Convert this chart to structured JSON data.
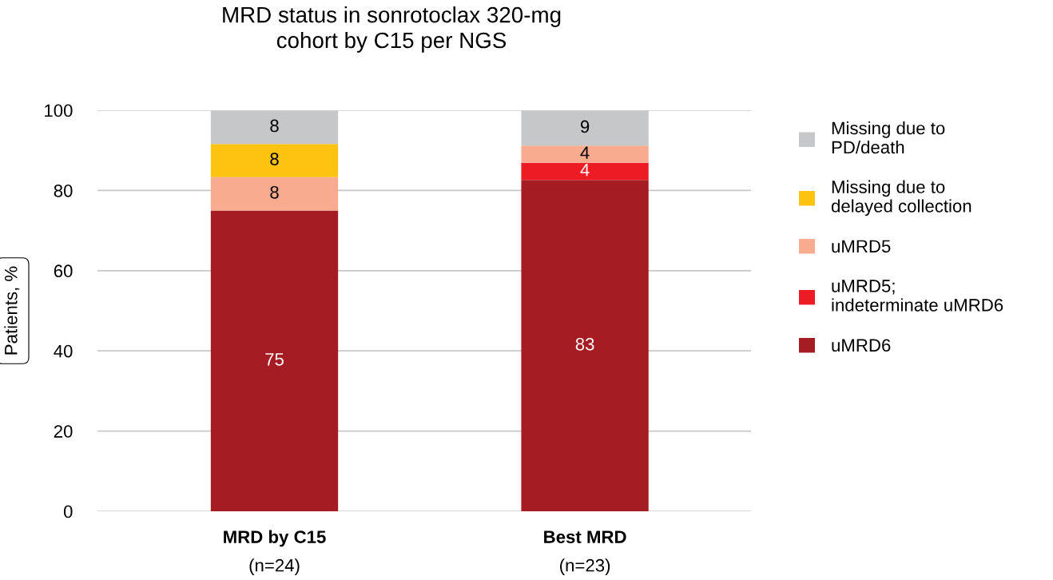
{
  "chart_data": {
    "type": "bar",
    "title": "MRD status in sonrotoclax 320-mg\ncohort by C15 per NGS",
    "ylabel": "Patients, %",
    "categories": [
      "MRD by C15\n(n=24)",
      "Best MRD\n(n=23)"
    ],
    "stacked": true,
    "series": [
      {
        "name": "uMRD6",
        "color": "#a51c22",
        "values": [
          75,
          82.6
        ],
        "value_labels": [
          "75",
          "83"
        ]
      },
      {
        "name": "uMRD5;\nindeterminate uMRD6",
        "color": "#ed1c24",
        "values": [
          null,
          4.3
        ],
        "value_labels": [
          null,
          "4"
        ]
      },
      {
        "name": "uMRD5",
        "color": "#f9ab8f",
        "values": [
          8.3,
          4.3
        ],
        "value_labels": [
          "8",
          "4"
        ]
      },
      {
        "name": "Missing due to\ndelayed collection",
        "color": "#fec210",
        "values": [
          8.3,
          null
        ],
        "value_labels": [
          "8",
          null
        ]
      },
      {
        "name": "Missing due to\nPD/death",
        "color": "#c6c7c9",
        "values": [
          8.3,
          8.7
        ],
        "value_labels": [
          "8",
          "9"
        ]
      }
    ],
    "ylim": [
      0,
      100
    ],
    "yticks": [
      0,
      20,
      40,
      60,
      80,
      100
    ],
    "grid": "y",
    "legend": "right"
  }
}
